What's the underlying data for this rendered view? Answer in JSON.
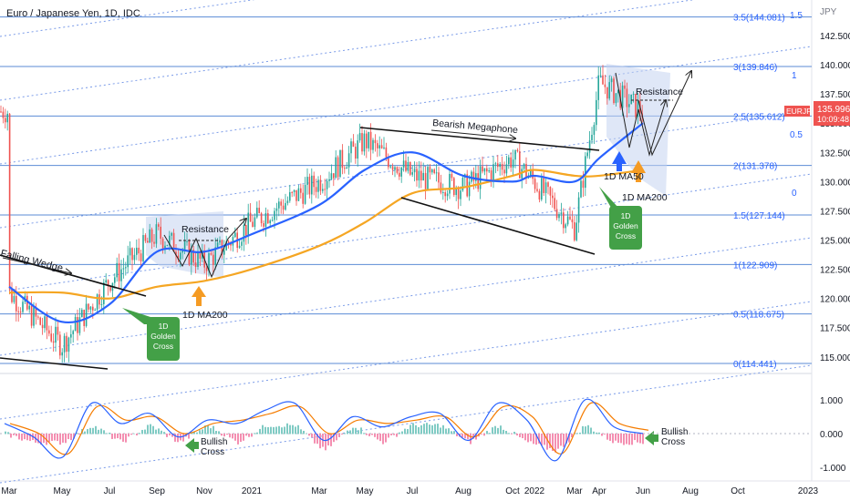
{
  "header": {
    "title": "Euro / Japanese Yen, 1D, IDC"
  },
  "price_scale": {
    "unit": "JPY",
    "ticks": [
      "142.500",
      "140.000",
      "137.500",
      "135.000",
      "132.500",
      "130.000",
      "127.500",
      "125.000",
      "122.500",
      "120.000",
      "117.500",
      "115.000"
    ],
    "current_symbol": "EURJPY",
    "current_price": "135.996",
    "countdown": "10:09:48"
  },
  "oscillator_scale": {
    "ticks": [
      "1.000",
      "0.000",
      "-1.000"
    ]
  },
  "time_axis": {
    "labels": [
      "Mar",
      "May",
      "Jul",
      "Sep",
      "Nov",
      "2021",
      "Mar",
      "May",
      "Jul",
      "Aug",
      "Oct",
      "2022",
      "Mar",
      "Apr",
      "Jun",
      "Aug",
      "Oct",
      "2023"
    ]
  },
  "fib_levels": [
    {
      "label": "3.5(144.081)"
    },
    {
      "label": "3(139.846)"
    },
    {
      "label": "2.5(135.612)"
    },
    {
      "label": "2(131.378)"
    },
    {
      "label": "1.5(127.144)"
    },
    {
      "label": "1(122.909)"
    },
    {
      "label": "0.5(118.675)"
    },
    {
      "label": "0(114.441)"
    }
  ],
  "channel_labels": [
    "1.5",
    "1",
    "0.5",
    "0"
  ],
  "annotations": {
    "falling_wedge": "Falling Wedge",
    "resistance_left": "Resistance",
    "resistance_right": "Resistance",
    "bearish_megaphone": "Bearish Megaphone",
    "ma200_left": "1D MA200",
    "ma50_right": "1D MA50",
    "ma200_right": "1D MA200",
    "golden_cross_left": [
      "1D",
      "Golden",
      "Cross"
    ],
    "golden_cross_right": [
      "1D",
      "Golden",
      "Cross"
    ],
    "bullish_cross_left": [
      "Bullish",
      "Cross"
    ],
    "bullish_cross_right": [
      "Bullish",
      "Cross"
    ]
  },
  "colors": {
    "ma50": "#2962ff",
    "ma200": "#f5a623",
    "fib_line": "#5b8bd6",
    "channel": "#7a9be8",
    "golden_cross": "#43a047",
    "price_tag": "#ef5350",
    "candle_up": "#26a69a",
    "candle_down": "#ef5350"
  },
  "chart_data": {
    "type": "line",
    "title": "Euro / Japanese Yen, 1D, IDC",
    "ylabel": "JPY",
    "ylim": [
      113.5,
      145.5
    ],
    "current_price": 135.996,
    "x": [
      "2020-03",
      "2020-05",
      "2020-07",
      "2020-09",
      "2020-11",
      "2021-01",
      "2021-03",
      "2021-05",
      "2021-07",
      "2021-08",
      "2021-10",
      "2022-01",
      "2022-03",
      "2022-04",
      "2022-06"
    ],
    "series": [
      {
        "name": "EURJPY",
        "values": [
          120.5,
          116.0,
          121.5,
          125.5,
          123.0,
          126.5,
          130.0,
          133.5,
          130.5,
          129.5,
          132.0,
          130.0,
          126.0,
          138.5,
          136.0
        ]
      },
      {
        "name": "1D MA50",
        "values": [
          121.0,
          118.0,
          119.5,
          124.0,
          124.0,
          125.5,
          128.0,
          131.0,
          132.5,
          130.5,
          130.0,
          130.5,
          130.0,
          132.0,
          135.0
        ]
      },
      {
        "name": "1D MA200",
        "values": [
          120.5,
          120.5,
          120.0,
          121.0,
          121.5,
          122.5,
          124.5,
          126.5,
          129.0,
          129.5,
          130.5,
          131.0,
          130.5,
          130.5,
          131.0
        ]
      }
    ],
    "fibonacci": [
      {
        "level": 0,
        "price": 114.441
      },
      {
        "level": 0.5,
        "price": 118.675
      },
      {
        "level": 1,
        "price": 122.909
      },
      {
        "level": 1.5,
        "price": 127.144
      },
      {
        "level": 2,
        "price": 131.378
      },
      {
        "level": 2.5,
        "price": 135.612
      },
      {
        "level": 3,
        "price": 139.846
      },
      {
        "level": 3.5,
        "price": 144.081
      }
    ],
    "oscillator": {
      "ylim": [
        -1.1,
        1.4
      ],
      "series": [
        {
          "values": [
            0.3,
            -0.1,
            -0.7,
            0.9,
            0.3,
            0.6,
            -0.1,
            0.4,
            0.3,
            0.7,
            0.9,
            -0.2,
            0.5,
            0.2,
            0.5,
            0.6,
            -0.2,
            0.9,
            0.4,
            -0.8,
            1.0,
            0.2,
            0.0
          ]
        },
        {
          "values": [
            0.3,
            0.0,
            -0.6,
            0.8,
            0.4,
            0.5,
            0.0,
            0.3,
            0.4,
            0.6,
            0.8,
            0.0,
            0.4,
            0.3,
            0.4,
            0.5,
            -0.1,
            0.8,
            0.5,
            -0.6,
            0.9,
            0.3,
            0.1
          ]
        }
      ]
    }
  }
}
